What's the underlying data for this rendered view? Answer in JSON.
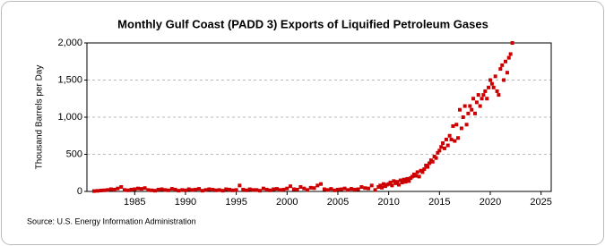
{
  "chart_data": {
    "type": "scatter",
    "title": "Monthly Gulf Coast (PADD 3) Exports of Liquified Petroleum Gases",
    "y_label": "Thousand Barrels per Day",
    "source": "Source: U.S. Energy Information Administration",
    "color": "#cc0000",
    "grid": true,
    "xlim": [
      1980.3,
      2026
    ],
    "xticks": [
      1985,
      1990,
      1995,
      2000,
      2005,
      2010,
      2015,
      2020,
      2025
    ],
    "ylim": [
      0,
      2000
    ],
    "yticks": [
      0,
      500,
      {
        "value": 1000,
        "label": "1,000"
      },
      {
        "value": 1500,
        "label": "1,500"
      },
      {
        "value": 2000,
        "label": "2,000"
      }
    ],
    "x": [
      1981,
      1981.33,
      1981.67,
      1982,
      1982.33,
      1982.67,
      1983,
      1983.33,
      1983.67,
      1984,
      1984.33,
      1984.67,
      1985,
      1985.33,
      1985.67,
      1986,
      1986.33,
      1986.67,
      1987,
      1987.33,
      1987.67,
      1988,
      1988.33,
      1988.67,
      1989,
      1989.33,
      1989.67,
      1990,
      1990.33,
      1990.67,
      1991,
      1991.33,
      1991.67,
      1992,
      1992.33,
      1992.67,
      1993,
      1993.33,
      1993.67,
      1994,
      1994.33,
      1994.67,
      1995,
      1995.33,
      1995.67,
      1996,
      1996.33,
      1996.67,
      1997,
      1997.33,
      1997.67,
      1998,
      1998.33,
      1998.67,
      1999,
      1999.33,
      1999.67,
      2000,
      2000.33,
      2000.67,
      2001,
      2001.33,
      2001.67,
      2002,
      2002.33,
      2002.67,
      2003,
      2003.33,
      2003.67,
      2004,
      2004.33,
      2004.67,
      2005,
      2005.33,
      2005.67,
      2006,
      2006.33,
      2006.67,
      2007,
      2007.33,
      2007.67,
      2008,
      2008.33,
      2008.67,
      2009,
      2009.17,
      2009.33,
      2009.5,
      2009.67,
      2009.83,
      2010,
      2010.17,
      2010.33,
      2010.5,
      2010.67,
      2010.83,
      2011,
      2011.17,
      2011.33,
      2011.5,
      2011.67,
      2011.83,
      2012,
      2012.17,
      2012.33,
      2012.5,
      2012.67,
      2012.83,
      2013,
      2013.17,
      2013.33,
      2013.5,
      2013.67,
      2013.83,
      2014,
      2014.17,
      2014.33,
      2014.5,
      2014.67,
      2014.83,
      2015,
      2015.17,
      2015.33,
      2015.5,
      2015.67,
      2015.83,
      2016,
      2016.17,
      2016.33,
      2016.5,
      2016.67,
      2016.83,
      2017,
      2017.17,
      2017.33,
      2017.5,
      2017.67,
      2017.83,
      2018,
      2018.17,
      2018.33,
      2018.5,
      2018.67,
      2018.83,
      2019,
      2019.17,
      2019.33,
      2019.5,
      2019.67,
      2019.83,
      2020,
      2020.17,
      2020.33,
      2020.5,
      2020.67,
      2020.83,
      2021,
      2021.17,
      2021.33,
      2021.5,
      2021.67,
      2021.83,
      2022,
      2022.17
    ],
    "values": [
      5,
      8,
      12,
      15,
      20,
      30,
      25,
      40,
      60,
      20,
      15,
      25,
      30,
      40,
      35,
      45,
      20,
      15,
      10,
      25,
      30,
      20,
      15,
      35,
      25,
      10,
      20,
      15,
      30,
      20,
      25,
      35,
      10,
      20,
      30,
      25,
      15,
      20,
      10,
      30,
      25,
      15,
      20,
      80,
      25,
      15,
      30,
      20,
      20,
      10,
      40,
      25,
      15,
      30,
      35,
      20,
      25,
      40,
      70,
      30,
      25,
      60,
      40,
      20,
      50,
      45,
      80,
      100,
      30,
      20,
      35,
      15,
      25,
      30,
      40,
      20,
      35,
      25,
      30,
      60,
      45,
      40,
      80,
      20,
      60,
      80,
      50,
      100,
      70,
      90,
      100,
      120,
      80,
      140,
      110,
      130,
      90,
      150,
      120,
      160,
      130,
      170,
      140,
      180,
      200,
      230,
      210,
      260,
      200,
      280,
      260,
      300,
      350,
      330,
      380,
      420,
      400,
      470,
      450,
      520,
      550,
      600,
      650,
      580,
      700,
      620,
      750,
      700,
      880,
      680,
      900,
      720,
      1100,
      850,
      1000,
      1150,
      900,
      1050,
      1150,
      1100,
      1250,
      1050,
      1200,
      1300,
      1150,
      1250,
      1300,
      1350,
      1250,
      1400,
      1500,
      1450,
      1400,
      1550,
      1350,
      1300,
      1650,
      1700,
      1500,
      1750,
      1600,
      1800,
      1850,
      2000
    ]
  }
}
